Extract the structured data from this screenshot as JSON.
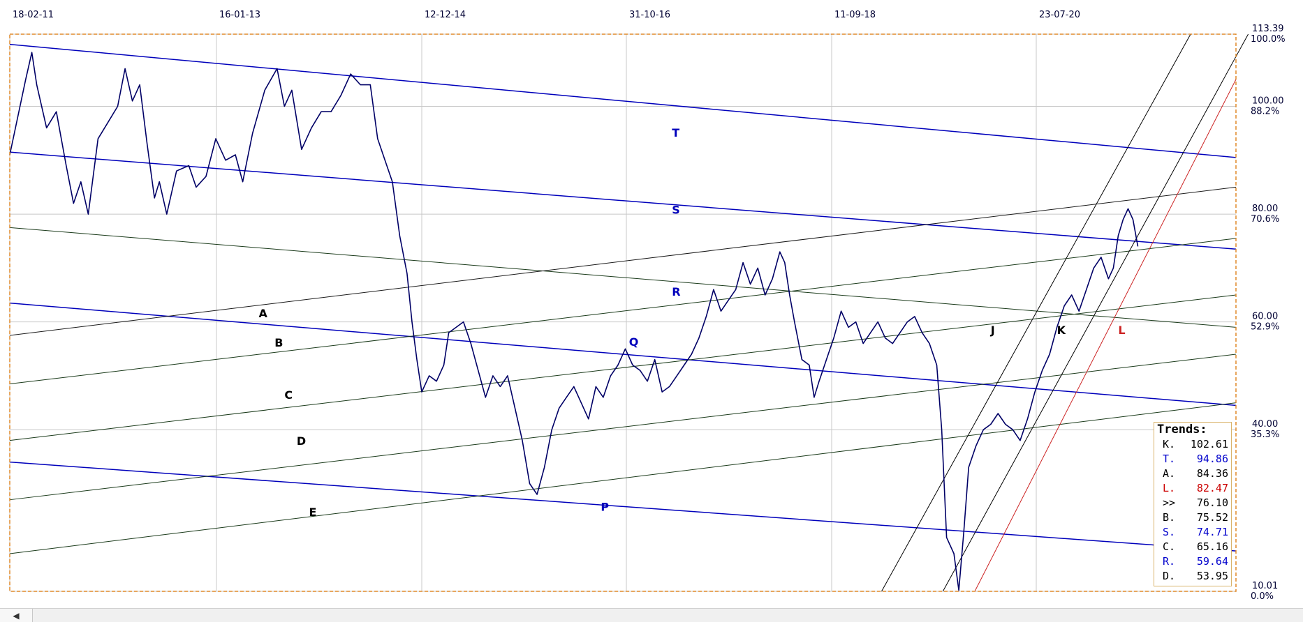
{
  "chart_data": {
    "type": "line",
    "title": "",
    "xlabel": "",
    "ylabel": "",
    "x_tick_labels": [
      "18-02-11",
      "16-01-13",
      "12-12-14",
      "31-10-16",
      "11-09-18",
      "23-07-20"
    ],
    "y_ticks": [
      {
        "value": "113.39",
        "pct": "100.0%"
      },
      {
        "value": "100.00",
        "pct": "88.2%"
      },
      {
        "value": "80.00",
        "pct": "70.6%"
      },
      {
        "value": "60.00",
        "pct": "52.9%"
      },
      {
        "value": "40.00",
        "pct": "35.3%"
      },
      {
        "value": "10.01",
        "pct": "0.0%"
      }
    ],
    "ylim": [
      10.01,
      113.39
    ],
    "grid": true,
    "series": [
      {
        "color": "#000066",
        "points": [
          [
            0.0,
            91
          ],
          [
            0.013,
            105
          ],
          [
            0.018,
            110
          ],
          [
            0.022,
            104
          ],
          [
            0.03,
            96
          ],
          [
            0.038,
            99
          ],
          [
            0.046,
            89
          ],
          [
            0.052,
            82
          ],
          [
            0.058,
            86
          ],
          [
            0.064,
            80
          ],
          [
            0.072,
            94
          ],
          [
            0.08,
            97
          ],
          [
            0.088,
            100
          ],
          [
            0.094,
            107
          ],
          [
            0.1,
            101
          ],
          [
            0.106,
            104
          ],
          [
            0.112,
            93
          ],
          [
            0.118,
            83
          ],
          [
            0.122,
            86
          ],
          [
            0.128,
            80
          ],
          [
            0.136,
            88
          ],
          [
            0.146,
            89
          ],
          [
            0.152,
            85
          ],
          [
            0.16,
            87
          ],
          [
            0.168,
            94
          ],
          [
            0.176,
            90
          ],
          [
            0.184,
            91
          ],
          [
            0.19,
            86
          ],
          [
            0.198,
            95
          ],
          [
            0.208,
            103
          ],
          [
            0.218,
            107
          ],
          [
            0.224,
            100
          ],
          [
            0.23,
            103
          ],
          [
            0.238,
            92
          ],
          [
            0.246,
            96
          ],
          [
            0.254,
            99
          ],
          [
            0.262,
            99
          ],
          [
            0.27,
            102
          ],
          [
            0.278,
            106
          ],
          [
            0.286,
            104
          ],
          [
            0.294,
            104
          ],
          [
            0.3,
            94
          ],
          [
            0.306,
            90
          ],
          [
            0.312,
            86
          ],
          [
            0.318,
            76
          ],
          [
            0.324,
            69
          ],
          [
            0.328,
            60
          ],
          [
            0.332,
            53
          ],
          [
            0.336,
            47
          ],
          [
            0.342,
            50
          ],
          [
            0.348,
            49
          ],
          [
            0.354,
            52
          ],
          [
            0.358,
            58
          ],
          [
            0.364,
            59
          ],
          [
            0.37,
            60
          ],
          [
            0.376,
            56
          ],
          [
            0.382,
            51
          ],
          [
            0.388,
            46
          ],
          [
            0.394,
            50
          ],
          [
            0.4,
            48
          ],
          [
            0.406,
            50
          ],
          [
            0.412,
            44
          ],
          [
            0.418,
            38
          ],
          [
            0.424,
            30
          ],
          [
            0.43,
            28
          ],
          [
            0.436,
            33
          ],
          [
            0.442,
            40
          ],
          [
            0.448,
            44
          ],
          [
            0.454,
            46
          ],
          [
            0.46,
            48
          ],
          [
            0.466,
            45
          ],
          [
            0.472,
            42
          ],
          [
            0.478,
            48
          ],
          [
            0.484,
            46
          ],
          [
            0.49,
            50
          ],
          [
            0.496,
            52
          ],
          [
            0.502,
            55
          ],
          [
            0.508,
            52
          ],
          [
            0.514,
            51
          ],
          [
            0.52,
            49
          ],
          [
            0.526,
            53
          ],
          [
            0.532,
            47
          ],
          [
            0.538,
            48
          ],
          [
            0.544,
            50
          ],
          [
            0.55,
            52
          ],
          [
            0.556,
            54
          ],
          [
            0.562,
            57
          ],
          [
            0.568,
            61
          ],
          [
            0.574,
            66
          ],
          [
            0.58,
            62
          ],
          [
            0.586,
            64
          ],
          [
            0.592,
            66
          ],
          [
            0.598,
            71
          ],
          [
            0.604,
            67
          ],
          [
            0.61,
            70
          ],
          [
            0.616,
            65
          ],
          [
            0.622,
            68
          ],
          [
            0.628,
            73
          ],
          [
            0.632,
            71
          ],
          [
            0.636,
            65
          ],
          [
            0.64,
            60
          ],
          [
            0.646,
            53
          ],
          [
            0.652,
            52
          ],
          [
            0.656,
            46
          ],
          [
            0.66,
            49
          ],
          [
            0.666,
            53
          ],
          [
            0.672,
            57
          ],
          [
            0.678,
            62
          ],
          [
            0.684,
            59
          ],
          [
            0.69,
            60
          ],
          [
            0.696,
            56
          ],
          [
            0.702,
            58
          ],
          [
            0.708,
            60
          ],
          [
            0.714,
            57
          ],
          [
            0.72,
            56
          ],
          [
            0.726,
            58
          ],
          [
            0.732,
            60
          ],
          [
            0.738,
            61
          ],
          [
            0.744,
            58
          ],
          [
            0.75,
            56
          ],
          [
            0.756,
            52
          ],
          [
            0.76,
            40
          ],
          [
            0.764,
            20
          ],
          [
            0.77,
            17
          ],
          [
            0.774,
            10.2
          ],
          [
            0.778,
            21
          ],
          [
            0.782,
            33
          ],
          [
            0.788,
            37
          ],
          [
            0.794,
            40
          ],
          [
            0.8,
            41
          ],
          [
            0.806,
            43
          ],
          [
            0.812,
            41
          ],
          [
            0.818,
            40
          ],
          [
            0.824,
            38
          ],
          [
            0.83,
            42
          ],
          [
            0.836,
            47
          ],
          [
            0.842,
            51
          ],
          [
            0.848,
            54
          ],
          [
            0.854,
            59
          ],
          [
            0.86,
            63
          ],
          [
            0.866,
            65
          ],
          [
            0.872,
            62
          ],
          [
            0.878,
            66
          ],
          [
            0.884,
            70
          ],
          [
            0.89,
            72
          ],
          [
            0.896,
            68
          ],
          [
            0.9,
            70
          ],
          [
            0.904,
            76
          ],
          [
            0.908,
            79
          ],
          [
            0.912,
            81
          ],
          [
            0.916,
            79
          ],
          [
            0.92,
            74
          ]
        ]
      }
    ],
    "trend_lines": [
      {
        "id": "T",
        "color": "#0000bb",
        "label_color": "#0000bb",
        "label_x_frac": 0.54,
        "label_y": 95.0
      },
      {
        "id": "S",
        "color": "#0000bb",
        "label_color": "#0000bb",
        "label_x_frac": 0.54,
        "label_y": 80.7
      },
      {
        "id": "R",
        "color": "#1a3a1a",
        "label_color": "#0000bb",
        "label_x_frac": 0.54,
        "label_y": 65.5
      },
      {
        "id": "Q",
        "color": "#0000bb",
        "label_color": "#0000bb",
        "label_x_frac": 0.505,
        "label_y": 56.2
      },
      {
        "id": "P",
        "color": "#0000bb",
        "label_color": "#0000bb",
        "label_x_frac": 0.482,
        "label_y": 25.6
      },
      {
        "id": "A",
        "color": "#1a1a1a",
        "label_color": "#000000",
        "label_x_frac": 0.203,
        "label_y": 61.5
      },
      {
        "id": "B",
        "color": "#1a3a1a",
        "label_color": "#000000",
        "label_x_frac": 0.216,
        "label_y": 56.1
      },
      {
        "id": "C",
        "color": "#1a3a1a",
        "label_color": "#000000",
        "label_x_frac": 0.224,
        "label_y": 46.4
      },
      {
        "id": "D",
        "color": "#1a3a1a",
        "label_color": "#000000",
        "label_x_frac": 0.234,
        "label_y": 37.8
      },
      {
        "id": "E",
        "color": "#1a3a1a",
        "label_color": "#000000",
        "label_x_frac": 0.244,
        "label_y": 24.6
      },
      {
        "id": "J",
        "color": "#000000",
        "label_color": "#000000",
        "label_x_frac": 0.8,
        "label_y": 58.4
      },
      {
        "id": "K",
        "color": "#000000",
        "label_color": "#000000",
        "label_x_frac": 0.854,
        "label_y": 58.4
      },
      {
        "id": "L",
        "color": "#cc2222",
        "label_color": "#cc2222",
        "label_x_frac": 0.904,
        "label_y": 58.4
      }
    ],
    "legend": {
      "title": "Trends:",
      "position": "bottom-right",
      "entries": [
        {
          "key": "K.",
          "value": "102.61",
          "color": "#000000"
        },
        {
          "key": "T.",
          "value": "94.86",
          "color": "#0000cc"
        },
        {
          "key": "A.",
          "value": "84.36",
          "color": "#000000"
        },
        {
          "key": "L.",
          "value": "82.47",
          "color": "#cc0000"
        },
        {
          "key": ">>",
          "value": "76.10",
          "color": "#000000"
        },
        {
          "key": "B.",
          "value": "75.52",
          "color": "#000000"
        },
        {
          "key": "S.",
          "value": "74.71",
          "color": "#0000cc"
        },
        {
          "key": "C.",
          "value": "65.16",
          "color": "#000000"
        },
        {
          "key": "R.",
          "value": "59.64",
          "color": "#0000cc"
        },
        {
          "key": "D.",
          "value": "53.95",
          "color": "#000000"
        }
      ]
    }
  },
  "colors": {
    "price": "#000066",
    "frame": "#e08a2a",
    "grid": "#c8c8c8",
    "axis_text": "#000033"
  },
  "scrollbar": {
    "left_icon": "arrow-left-icon"
  }
}
